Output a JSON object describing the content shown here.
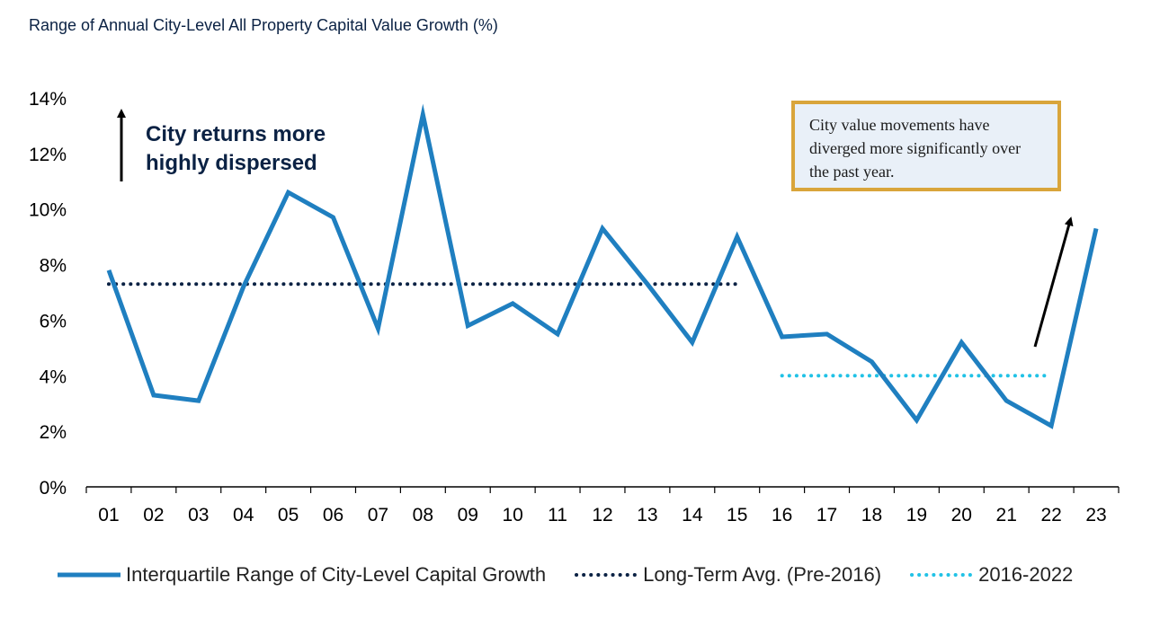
{
  "colors": {
    "iqr": "#1f7fc0",
    "long_term": "#0b2244",
    "recent": "#21c2e6",
    "callout_border": "#d9a53b",
    "callout_bg": "#e9f0f8"
  },
  "chart_data": {
    "type": "line",
    "title": "Range of Annual City-Level All Property Capital Value Growth (%)",
    "categories": [
      "01",
      "02",
      "03",
      "04",
      "05",
      "06",
      "07",
      "08",
      "09",
      "10",
      "11",
      "12",
      "13",
      "14",
      "15",
      "16",
      "17",
      "18",
      "19",
      "20",
      "21",
      "22",
      "23"
    ],
    "y_ticks": [
      "0%",
      "2%",
      "4%",
      "6%",
      "8%",
      "10%",
      "12%",
      "14%"
    ],
    "ylim": [
      0,
      14
    ],
    "grid": false,
    "legend_position": "bottom",
    "series": [
      {
        "name": "Interquartile Range of City-Level Capital Growth",
        "style": "solid",
        "values": [
          7.8,
          3.3,
          3.1,
          7.2,
          10.6,
          9.7,
          5.7,
          13.4,
          5.8,
          6.6,
          5.5,
          9.3,
          7.3,
          5.2,
          9.0,
          5.4,
          5.5,
          4.5,
          2.4,
          5.2,
          3.1,
          2.2,
          9.3
        ]
      },
      {
        "name": "Long-Term Avg. (Pre-2016)",
        "style": "dotted",
        "x_range": [
          "01",
          "15"
        ],
        "value": 7.3
      },
      {
        "name": "2016-2022",
        "style": "dotted",
        "x_range": [
          "16",
          "22"
        ],
        "value": 4.0
      }
    ],
    "annotations": [
      {
        "text": "City returns more highly dispersed"
      },
      {
        "text": "City value movements have diverged more significantly over the past year."
      }
    ]
  }
}
